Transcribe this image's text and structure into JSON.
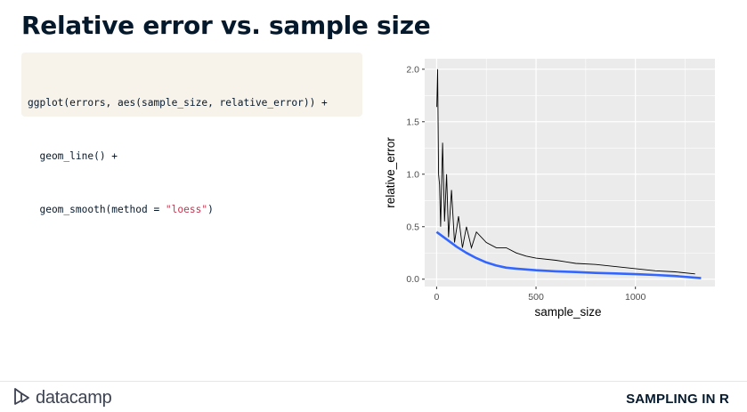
{
  "slide": {
    "title": "Relative error vs. sample size"
  },
  "code": {
    "line1": "ggplot(errors, aes(sample_size, relative_error)) +",
    "line2": "  geom_line() +",
    "line3_prefix": "  geom_smooth(method = ",
    "line3_string": "\"loess\"",
    "line3_suffix": ")"
  },
  "footer": {
    "brand": "datacamp",
    "course": "SAMPLING IN R"
  },
  "colors": {
    "code_bg": "#f7f3eb",
    "string": "#c8344f",
    "panel_bg": "#ebebeb",
    "smooth_line": "#3366ff",
    "raw_line": "#000000"
  },
  "chart_data": {
    "type": "line",
    "xlabel": "sample_size",
    "ylabel": "relative_error",
    "xlim": [
      -60,
      1400
    ],
    "ylim": [
      -0.07,
      2.1
    ],
    "x_ticks": [
      0,
      500,
      1000
    ],
    "x_tick_labels": [
      "0",
      "500",
      "1000"
    ],
    "y_ticks": [
      0,
      0.5,
      1,
      1.5,
      2
    ],
    "y_tick_labels": [
      "0.0",
      "0.5",
      "1.0",
      "1.5",
      "2.0"
    ],
    "grid": true,
    "series": [
      {
        "kind": "raw",
        "x": [
          1,
          5,
          10,
          15,
          20,
          30,
          40,
          50,
          60,
          75,
          90,
          110,
          130,
          150,
          175,
          200,
          250,
          300,
          350,
          400,
          450,
          500,
          600,
          700,
          800,
          900,
          1000,
          1100,
          1200,
          1300
        ],
        "y": [
          1.64,
          2.0,
          1.0,
          0.9,
          0.5,
          1.3,
          0.55,
          1.0,
          0.4,
          0.85,
          0.35,
          0.6,
          0.3,
          0.5,
          0.3,
          0.45,
          0.35,
          0.3,
          0.3,
          0.25,
          0.22,
          0.2,
          0.18,
          0.15,
          0.14,
          0.12,
          0.1,
          0.08,
          0.07,
          0.05
        ]
      },
      {
        "kind": "smooth",
        "x": [
          0,
          50,
          100,
          150,
          200,
          250,
          300,
          350,
          400,
          500,
          600,
          700,
          800,
          900,
          1000,
          1100,
          1200,
          1330
        ],
        "y": [
          0.45,
          0.38,
          0.31,
          0.25,
          0.2,
          0.16,
          0.13,
          0.11,
          0.1,
          0.085,
          0.075,
          0.068,
          0.06,
          0.055,
          0.048,
          0.04,
          0.03,
          0.01
        ]
      }
    ]
  }
}
